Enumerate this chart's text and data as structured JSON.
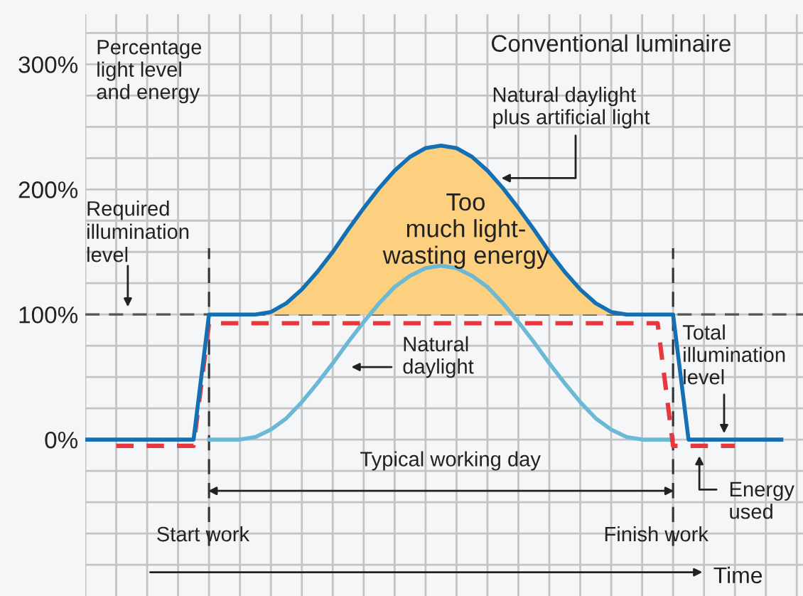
{
  "chart_data": {
    "type": "line",
    "title": "Conventional luminaire",
    "categories": [
      null,
      null,
      null,
      null,
      null,
      null,
      null,
      null,
      null,
      null,
      null,
      null,
      null,
      null,
      null,
      null,
      null,
      null,
      null,
      null,
      null,
      null,
      null,
      null,
      null,
      null,
      null,
      null,
      null,
      null,
      null,
      null,
      null,
      null,
      null,
      null,
      null,
      null,
      null,
      null,
      null,
      null,
      null,
      null,
      null,
      null,
      null
    ],
    "xlabel": "Time",
    "series": [
      {
        "type": "area",
        "color": "#fdd07f",
        "values": [
          null,
          null,
          null,
          null,
          null,
          null,
          null,
          null,
          null,
          null,
          null,
          100,
          102,
          109,
          120,
          134,
          150,
          168,
          185,
          201,
          215,
          226,
          233,
          235,
          233,
          226,
          215,
          201,
          185,
          168,
          150,
          134,
          120,
          109,
          102,
          100,
          null,
          null,
          null,
          null,
          null,
          null,
          null,
          null,
          null,
          null,
          null
        ]
      },
      {
        "color": "#6cb9d6",
        "values": [
          null,
          null,
          null,
          null,
          null,
          null,
          null,
          null,
          0,
          0,
          0,
          2,
          8,
          17,
          30,
          45,
          61,
          78,
          94,
          109,
          122,
          131,
          137,
          139,
          137,
          131,
          122,
          109,
          94,
          78,
          61,
          45,
          30,
          17,
          8,
          2,
          0,
          0,
          0,
          null,
          null,
          null,
          null,
          null,
          null,
          null,
          null
        ]
      },
      {
        "color": "#e8383d",
        "line_style": "dashed",
        "values": [
          null,
          null,
          -5,
          -5,
          -5,
          -5,
          -5,
          -5,
          93,
          93,
          93,
          93,
          93,
          93,
          93,
          93,
          93,
          93,
          93,
          93,
          93,
          93,
          93,
          93,
          93,
          93,
          93,
          93,
          93,
          93,
          93,
          93,
          93,
          93,
          93,
          93,
          93,
          93,
          -5,
          -5,
          -5,
          -5,
          -5,
          null,
          null,
          null,
          null
        ]
      },
      {
        "color": "#1470b4",
        "values": [
          0,
          0,
          0,
          0,
          0,
          0,
          0,
          0,
          100,
          100,
          100,
          100,
          102,
          109,
          120,
          134,
          150,
          168,
          185,
          201,
          215,
          226,
          233,
          235,
          233,
          226,
          215,
          201,
          185,
          168,
          150,
          134,
          120,
          109,
          102,
          100,
          100,
          100,
          100,
          0,
          0,
          0,
          0,
          0,
          0,
          0,
          null
        ]
      }
    ],
    "ylim": [
      -125,
      340
    ],
    "yticks": [
      {
        "value": -100,
        "label": null
      },
      {
        "value": -75,
        "label": null
      },
      {
        "value": -50,
        "label": null
      },
      {
        "value": -25,
        "label": null
      },
      {
        "value": 0,
        "label": "0%"
      },
      {
        "value": 25,
        "label": null
      },
      {
        "value": 50,
        "label": null
      },
      {
        "value": 75,
        "label": null
      },
      {
        "value": 100,
        "label": "100%"
      },
      {
        "value": 125,
        "label": null
      },
      {
        "value": 150,
        "label": null
      },
      {
        "value": 175,
        "label": null
      },
      {
        "value": 200,
        "label": "200%"
      },
      {
        "value": 225,
        "label": null
      },
      {
        "value": 250,
        "label": null
      },
      {
        "value": 275,
        "label": null
      },
      {
        "value": 300,
        "label": "300%"
      },
      {
        "value": 325,
        "label": null
      }
    ],
    "grid": true,
    "tick_labels": "y",
    "ref_lines": [
      {
        "axis": "y",
        "value": 100,
        "label": "Required illumination level",
        "color": "#555555",
        "line_style": "dashed"
      }
    ],
    "annotations": [
      "Percentage\nlight level\nand energy",
      "Natural daylight\nplus artificial light",
      "Too\nmuch light-\nwasting energy",
      "Natural\ndaylight",
      "Total\nillumination\nlevel",
      "Energy\nused",
      "Typical working day",
      "Start work",
      "Finish work"
    ]
  }
}
